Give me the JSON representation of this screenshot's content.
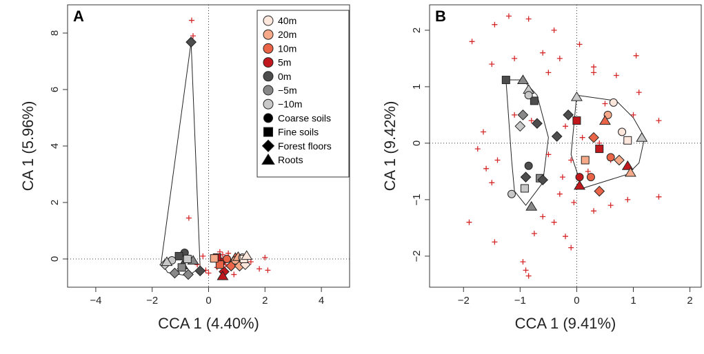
{
  "chart_data": [
    {
      "type": "scatter",
      "panel_label": "A",
      "xlabel": "CCA 1 (4.40%)",
      "ylabel": "CA 1 (5.96%)",
      "xlim": [
        -5,
        5
      ],
      "ylim": [
        -1.0,
        9.0
      ],
      "xticks": [
        -4,
        -2,
        0,
        2,
        4
      ],
      "yticks": [
        0,
        2,
        4,
        6,
        8
      ],
      "reference_lines": {
        "x": 0,
        "y": 0
      },
      "legend": {
        "placement": "top-right",
        "distances": [
          {
            "label": "40m",
            "color": "#fde6dc"
          },
          {
            "label": "20m",
            "color": "#f6aa8a"
          },
          {
            "label": "10m",
            "color": "#ea6548"
          },
          {
            "label": "5m",
            "color": "#c1181d"
          },
          {
            "label": "0m",
            "color": "#4d4d4d"
          },
          {
            "label": "−5m",
            "color": "#888888"
          },
          {
            "label": "−10m",
            "color": "#c8c8c8"
          }
        ],
        "sample_types": [
          {
            "label": "Coarse soils",
            "shape": "circle"
          },
          {
            "label": "Fine soils",
            "shape": "square"
          },
          {
            "label": "Forest floors",
            "shape": "diamond"
          },
          {
            "label": "Roots",
            "shape": "triangle"
          }
        ]
      },
      "hull": [
        [
          -0.62,
          7.68
        ],
        [
          -1.68,
          -0.12
        ],
        [
          -1.45,
          -0.48
        ],
        [
          -0.72,
          -0.6
        ],
        [
          -0.3,
          -0.3
        ]
      ],
      "species": [
        [
          -0.6,
          8.45
        ],
        [
          -0.55,
          7.9
        ],
        [
          -0.7,
          1.45
        ],
        [
          2.0,
          0.05
        ],
        [
          1.8,
          -0.35
        ],
        [
          2.1,
          -0.4
        ],
        [
          1.5,
          -0.1
        ],
        [
          1.1,
          -0.3
        ],
        [
          0.5,
          0.15
        ],
        [
          0.3,
          -0.3
        ],
        [
          0.0,
          -0.5
        ],
        [
          -0.2,
          0.1
        ],
        [
          0.7,
          0.2
        ],
        [
          0.9,
          -0.55
        ],
        [
          -0.4,
          -0.2
        ],
        [
          0.2,
          0.0
        ],
        [
          0.6,
          -0.2
        ],
        [
          1.3,
          0.0
        ],
        [
          -0.1,
          -0.4
        ],
        [
          0.4,
          0.25
        ]
      ],
      "samples": [
        {
          "x": -0.62,
          "y": 7.68,
          "shape": "diamond",
          "group": "0m"
        },
        {
          "x": -0.85,
          "y": 0.22,
          "shape": "circle",
          "group": "0m"
        },
        {
          "x": -1.05,
          "y": 0.1,
          "shape": "square",
          "group": "0m"
        },
        {
          "x": -0.92,
          "y": -0.22,
          "shape": "triangle",
          "group": "0m"
        },
        {
          "x": -0.3,
          "y": -0.42,
          "shape": "diamond",
          "group": "0m"
        },
        {
          "x": -1.2,
          "y": -0.5,
          "shape": "diamond",
          "group": "−5m"
        },
        {
          "x": -0.72,
          "y": -0.55,
          "shape": "diamond",
          "group": "−5m"
        },
        {
          "x": -0.95,
          "y": -0.3,
          "shape": "square",
          "group": "−5m"
        },
        {
          "x": -0.55,
          "y": -0.05,
          "shape": "triangle",
          "group": "−5m"
        },
        {
          "x": -1.3,
          "y": -0.05,
          "shape": "circle",
          "group": "−10m"
        },
        {
          "x": -1.55,
          "y": -0.2,
          "shape": "diamond",
          "group": "−10m"
        },
        {
          "x": -1.48,
          "y": -0.1,
          "shape": "triangle",
          "group": "−10m"
        },
        {
          "x": -0.75,
          "y": 0.0,
          "shape": "square",
          "group": "−10m"
        },
        {
          "x": 0.45,
          "y": -0.1,
          "shape": "circle",
          "group": "5m"
        },
        {
          "x": 0.55,
          "y": -0.45,
          "shape": "diamond",
          "group": "5m"
        },
        {
          "x": 0.3,
          "y": 0.05,
          "shape": "square",
          "group": "5m"
        },
        {
          "x": 0.5,
          "y": -0.6,
          "shape": "triangle",
          "group": "5m"
        },
        {
          "x": 0.65,
          "y": 0.0,
          "shape": "circle",
          "group": "10m"
        },
        {
          "x": 0.8,
          "y": -0.25,
          "shape": "diamond",
          "group": "10m"
        },
        {
          "x": 0.4,
          "y": -0.2,
          "shape": "square",
          "group": "10m"
        },
        {
          "x": 0.95,
          "y": 0.05,
          "shape": "triangle",
          "group": "10m"
        },
        {
          "x": 0.95,
          "y": -0.05,
          "shape": "circle",
          "group": "20m"
        },
        {
          "x": 1.1,
          "y": -0.25,
          "shape": "diamond",
          "group": "20m"
        },
        {
          "x": 0.2,
          "y": 0.02,
          "shape": "square",
          "group": "20m"
        },
        {
          "x": 1.05,
          "y": 0.08,
          "shape": "triangle",
          "group": "20m"
        },
        {
          "x": 1.2,
          "y": 0.05,
          "shape": "circle",
          "group": "40m"
        },
        {
          "x": 1.3,
          "y": -0.2,
          "shape": "diamond",
          "group": "40m"
        },
        {
          "x": 1.25,
          "y": 0.0,
          "shape": "square",
          "group": "40m"
        },
        {
          "x": 1.35,
          "y": 0.12,
          "shape": "triangle",
          "group": "40m"
        }
      ]
    },
    {
      "type": "scatter",
      "panel_label": "B",
      "xlabel": "CCA 1 (9.41%)",
      "ylabel": "CA 1 (9.42%)",
      "xlim": [
        -2.6,
        2.2
      ],
      "ylim": [
        -2.55,
        2.45
      ],
      "xticks": [
        -2,
        -1,
        0,
        1,
        2
      ],
      "yticks": [
        -2,
        -1,
        0,
        1,
        2
      ],
      "reference_lines": {
        "x": 0,
        "y": 0
      },
      "hulls": [
        [
          [
            -1.25,
            1.12
          ],
          [
            -0.95,
            1.12
          ],
          [
            -0.7,
            0.85
          ],
          [
            -0.5,
            0.1
          ],
          [
            -0.6,
            -0.7
          ],
          [
            -0.9,
            -1.1
          ],
          [
            -1.1,
            -0.85
          ],
          [
            -1.15,
            -0.3
          ]
        ],
        [
          [
            0.0,
            0.85
          ],
          [
            0.7,
            0.75
          ],
          [
            1.0,
            0.45
          ],
          [
            1.2,
            0.1
          ],
          [
            1.1,
            -0.35
          ],
          [
            0.9,
            -0.55
          ],
          [
            0.1,
            -0.8
          ],
          [
            -0.1,
            -0.2
          ]
        ]
      ],
      "species": [
        [
          -1.85,
          1.8
        ],
        [
          -1.45,
          2.1
        ],
        [
          -1.2,
          2.25
        ],
        [
          -0.85,
          2.2
        ],
        [
          -0.4,
          2.0
        ],
        [
          0.05,
          1.75
        ],
        [
          -1.1,
          1.5
        ],
        [
          -1.5,
          1.4
        ],
        [
          -0.6,
          1.6
        ],
        [
          -0.5,
          1.25
        ],
        [
          -0.3,
          1.5
        ],
        [
          0.3,
          1.25
        ],
        [
          0.3,
          1.35
        ],
        [
          0.7,
          1.2
        ],
        [
          1.05,
          1.55
        ],
        [
          1.1,
          0.9
        ],
        [
          1.0,
          0.5
        ],
        [
          1.45,
          0.4
        ],
        [
          0.5,
          0.7
        ],
        [
          -1.65,
          0.2
        ],
        [
          -1.75,
          -0.1
        ],
        [
          -1.4,
          -0.3
        ],
        [
          -1.6,
          -0.45
        ],
        [
          -1.5,
          -0.7
        ],
        [
          -1.1,
          0.5
        ],
        [
          -0.8,
          0.4
        ],
        [
          -0.2,
          0.3
        ],
        [
          0.1,
          0.1
        ],
        [
          -0.1,
          -0.3
        ],
        [
          -0.25,
          -0.6
        ],
        [
          -0.3,
          -0.9
        ],
        [
          -0.05,
          -1.05
        ],
        [
          0.3,
          -1.2
        ],
        [
          0.6,
          -1.1
        ],
        [
          0.9,
          -1.0
        ],
        [
          1.45,
          -0.95
        ],
        [
          -0.6,
          -1.3
        ],
        [
          -0.4,
          -1.4
        ],
        [
          -0.2,
          -1.65
        ],
        [
          -0.1,
          -1.85
        ],
        [
          -0.75,
          -1.6
        ],
        [
          -1.45,
          -1.75
        ],
        [
          -1.9,
          -1.4
        ],
        [
          -0.95,
          -2.1
        ],
        [
          -0.85,
          -2.35
        ],
        [
          -0.9,
          -2.25
        ],
        [
          0.2,
          -0.5
        ],
        [
          0.4,
          0.0
        ],
        [
          -0.5,
          -0.2
        ],
        [
          0.6,
          -0.3
        ]
      ],
      "samples": [
        {
          "x": -1.25,
          "y": 1.12,
          "shape": "square",
          "group": "0m"
        },
        {
          "x": -0.95,
          "y": 1.12,
          "shape": "triangle",
          "group": "−5m"
        },
        {
          "x": -0.85,
          "y": 0.95,
          "shape": "triangle",
          "group": "−10m"
        },
        {
          "x": -0.75,
          "y": 0.75,
          "shape": "square",
          "group": "0m"
        },
        {
          "x": -0.85,
          "y": 0.85,
          "shape": "circle",
          "group": "−10m"
        },
        {
          "x": -0.95,
          "y": 0.5,
          "shape": "diamond",
          "group": "−5m"
        },
        {
          "x": -1.0,
          "y": 0.3,
          "shape": "diamond",
          "group": "−10m"
        },
        {
          "x": -0.7,
          "y": 0.35,
          "shape": "diamond",
          "group": "0m"
        },
        {
          "x": -0.35,
          "y": 0.12,
          "shape": "diamond",
          "group": "0m"
        },
        {
          "x": -0.85,
          "y": -0.4,
          "shape": "circle",
          "group": "0m"
        },
        {
          "x": -0.9,
          "y": -0.6,
          "shape": "diamond",
          "group": "0m"
        },
        {
          "x": -0.65,
          "y": -0.62,
          "shape": "square",
          "group": "−5m"
        },
        {
          "x": -0.6,
          "y": -0.65,
          "shape": "diamond",
          "group": "0m"
        },
        {
          "x": -1.15,
          "y": -0.9,
          "shape": "circle",
          "group": "−10m"
        },
        {
          "x": -0.92,
          "y": -0.8,
          "shape": "square",
          "group": "−10m"
        },
        {
          "x": -0.8,
          "y": -1.12,
          "shape": "triangle",
          "group": "−5m"
        },
        {
          "x": 0.0,
          "y": 0.82,
          "shape": "triangle",
          "group": "−10m"
        },
        {
          "x": -0.15,
          "y": 0.5,
          "shape": "diamond",
          "group": "0m"
        },
        {
          "x": 0.0,
          "y": 0.4,
          "shape": "square",
          "group": "5m"
        },
        {
          "x": 0.65,
          "y": 0.72,
          "shape": "circle",
          "group": "40m"
        },
        {
          "x": 0.55,
          "y": 0.5,
          "shape": "circle",
          "group": "20m"
        },
        {
          "x": 0.5,
          "y": 0.4,
          "shape": "triangle",
          "group": "10m"
        },
        {
          "x": 0.8,
          "y": 0.2,
          "shape": "circle",
          "group": "40m"
        },
        {
          "x": 0.9,
          "y": 0.05,
          "shape": "square",
          "group": "40m"
        },
        {
          "x": 1.15,
          "y": 0.1,
          "shape": "triangle",
          "group": "−10m"
        },
        {
          "x": 0.3,
          "y": 0.1,
          "shape": "diamond",
          "group": "10m"
        },
        {
          "x": 0.4,
          "y": -0.1,
          "shape": "square",
          "group": "5m"
        },
        {
          "x": 0.6,
          "y": -0.25,
          "shape": "circle",
          "group": "10m"
        },
        {
          "x": 0.75,
          "y": -0.3,
          "shape": "diamond",
          "group": "20m"
        },
        {
          "x": 0.9,
          "y": -0.4,
          "shape": "triangle",
          "group": "5m"
        },
        {
          "x": 0.95,
          "y": -0.52,
          "shape": "triangle",
          "group": "20m"
        },
        {
          "x": 0.25,
          "y": -0.6,
          "shape": "circle",
          "group": "10m"
        },
        {
          "x": 0.05,
          "y": -0.6,
          "shape": "circle",
          "group": "5m"
        },
        {
          "x": 0.05,
          "y": -0.75,
          "shape": "triangle",
          "group": "5m"
        },
        {
          "x": 0.4,
          "y": -0.85,
          "shape": "diamond",
          "group": "10m"
        },
        {
          "x": 0.15,
          "y": -0.3,
          "shape": "square",
          "group": "20m"
        }
      ]
    }
  ]
}
